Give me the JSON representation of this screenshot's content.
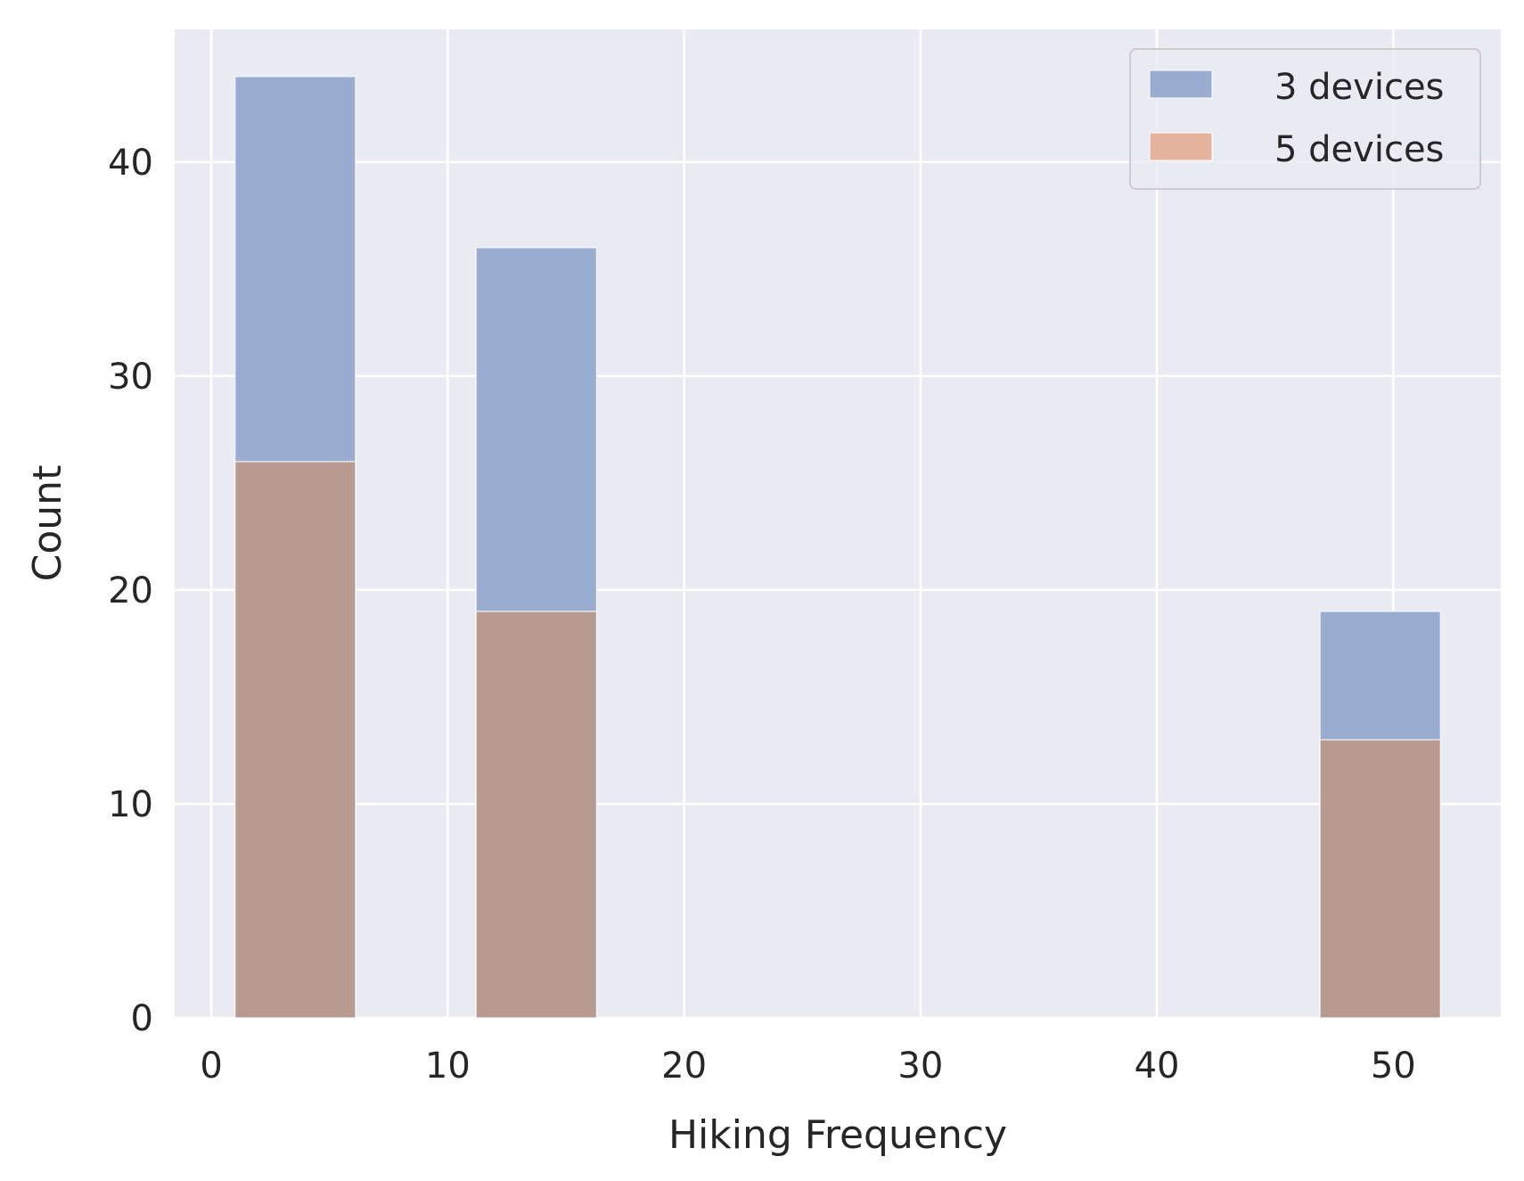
{
  "chart_data": {
    "type": "bar",
    "title": "",
    "xlabel": "Hiking Frequency",
    "ylabel": "Count",
    "xlim": [
      -1.55,
      54.55
    ],
    "ylim": [
      0,
      46.2
    ],
    "xticks": [
      0,
      10,
      20,
      30,
      40,
      50
    ],
    "yticks": [
      0,
      10,
      20,
      30,
      40
    ],
    "grid": true,
    "legend_position": "top-right",
    "series": [
      {
        "name": "3 devices",
        "color": "#9aadd1",
        "bins": [
          {
            "x0": 1.0,
            "x1": 6.1,
            "value": 44
          },
          {
            "x0": 11.2,
            "x1": 16.3,
            "value": 36
          },
          {
            "x0": 46.9,
            "x1": 52.0,
            "value": 19
          }
        ]
      },
      {
        "name": "5 devices",
        "color": "#e6b39e",
        "overlap_color": "#b99a90",
        "bins": [
          {
            "x0": 1.0,
            "x1": 6.1,
            "value": 26
          },
          {
            "x0": 11.2,
            "x1": 16.3,
            "value": 19
          },
          {
            "x0": 46.9,
            "x1": 52.0,
            "value": 13
          }
        ]
      }
    ]
  }
}
